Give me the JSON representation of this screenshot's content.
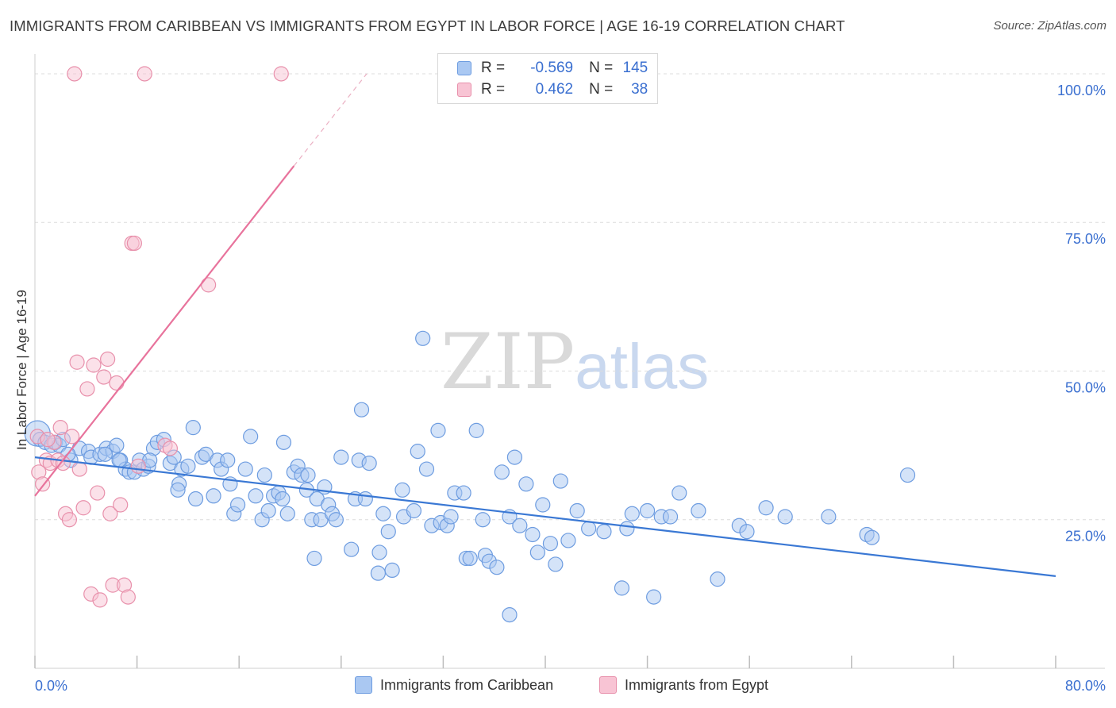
{
  "title": "IMMIGRANTS FROM CARIBBEAN VS IMMIGRANTS FROM EGYPT IN LABOR FORCE | AGE 16-19 CORRELATION CHART",
  "source": "Source: ZipAtlas.com",
  "watermark": {
    "zip": "ZIP",
    "atlas": "atlas"
  },
  "legend": {
    "r_label": "R =",
    "n_label": "N =",
    "rows": [
      {
        "r": "-0.569",
        "n": "145",
        "fill": "#aac8f2",
        "stroke": "#6d9ce0"
      },
      {
        "r": "0.462",
        "n": "38",
        "fill": "#f8c4d4",
        "stroke": "#e890ab"
      }
    ]
  },
  "colors": {
    "blue": "#3a78d4",
    "pink": "#e8739c",
    "blue_fill": "#a9c7f1",
    "pink_fill": "#f7c3d3",
    "axis_text": "#3a6fd0"
  },
  "chart_data": {
    "type": "scatter",
    "title": "IMMIGRANTS FROM CARIBBEAN VS IMMIGRANTS FROM EGYPT IN LABOR FORCE | AGE 16-19 CORRELATION CHART",
    "xlabel": "",
    "ylabel": "In Labor Force | Age 16-19",
    "xlim": [
      0,
      80
    ],
    "ylim": [
      0,
      102
    ],
    "x_tick_labels": [
      "0.0%",
      "80.0%"
    ],
    "y_ticks": [
      25,
      50,
      75,
      100
    ],
    "y_tick_labels": [
      "25.0%",
      "50.0%",
      "75.0%",
      "100.0%"
    ],
    "grid": "horizontal dashed",
    "legend_placement": "bottom-center",
    "series": [
      {
        "name": "Immigrants from Caribbean",
        "color": "#3a78d4",
        "trend": {
          "x": [
            0,
            80
          ],
          "y": [
            35.5,
            15.5
          ]
        },
        "points": [
          [
            0.2,
            39.5
          ],
          [
            0.4,
            38.5
          ],
          [
            0.8,
            38.0
          ],
          [
            1.3,
            37.5
          ],
          [
            1.6,
            38.0
          ],
          [
            1.9,
            37.5
          ],
          [
            2.2,
            38.5
          ],
          [
            2.8,
            35.0
          ],
          [
            3.5,
            37.0
          ],
          [
            4.2,
            36.5
          ],
          [
            4.4,
            35.5
          ],
          [
            5.1,
            36.0
          ],
          [
            5.6,
            37.0
          ],
          [
            6.1,
            36.5
          ],
          [
            5.5,
            36.0
          ],
          [
            6.4,
            37.5
          ],
          [
            6.7,
            35.0
          ],
          [
            7.1,
            33.5
          ],
          [
            7.4,
            33.0
          ],
          [
            7.8,
            33.0
          ],
          [
            8.2,
            35.0
          ],
          [
            8.5,
            33.5
          ],
          [
            8.9,
            34.0
          ],
          [
            9.3,
            37.0
          ],
          [
            9.6,
            38.0
          ],
          [
            10.1,
            38.5
          ],
          [
            10.6,
            34.5
          ],
          [
            10.9,
            35.5
          ],
          [
            11.3,
            31.0
          ],
          [
            11.5,
            33.5
          ],
          [
            12.0,
            34.0
          ],
          [
            12.4,
            40.5
          ],
          [
            12.6,
            28.5
          ],
          [
            13.1,
            35.5
          ],
          [
            13.4,
            36.0
          ],
          [
            14.0,
            29.0
          ],
          [
            14.3,
            35.0
          ],
          [
            14.6,
            33.5
          ],
          [
            15.1,
            35.0
          ],
          [
            15.3,
            31.0
          ],
          [
            15.6,
            26.0
          ],
          [
            15.9,
            27.5
          ],
          [
            16.5,
            33.5
          ],
          [
            16.9,
            39.0
          ],
          [
            17.3,
            29.0
          ],
          [
            17.8,
            25.0
          ],
          [
            18.0,
            32.5
          ],
          [
            18.3,
            26.5
          ],
          [
            18.7,
            29.0
          ],
          [
            19.1,
            29.5
          ],
          [
            19.4,
            28.5
          ],
          [
            19.5,
            38.0
          ],
          [
            19.8,
            26.0
          ],
          [
            20.3,
            33.0
          ],
          [
            20.6,
            34.0
          ],
          [
            20.9,
            32.5
          ],
          [
            21.3,
            30.0
          ],
          [
            21.7,
            25.0
          ],
          [
            21.9,
            18.5
          ],
          [
            22.1,
            28.5
          ],
          [
            22.4,
            25.0
          ],
          [
            22.7,
            30.5
          ],
          [
            23.0,
            27.5
          ],
          [
            23.3,
            26.0
          ],
          [
            23.6,
            25.0
          ],
          [
            24.0,
            35.5
          ],
          [
            24.8,
            20.0
          ],
          [
            25.1,
            28.5
          ],
          [
            25.4,
            35.0
          ],
          [
            25.6,
            43.5
          ],
          [
            25.9,
            28.5
          ],
          [
            26.2,
            34.5
          ],
          [
            26.9,
            16.0
          ],
          [
            27.0,
            19.5
          ],
          [
            27.3,
            26.0
          ],
          [
            27.7,
            23.0
          ],
          [
            28.0,
            16.5
          ],
          [
            28.8,
            30.0
          ],
          [
            28.9,
            25.5
          ],
          [
            29.7,
            26.5
          ],
          [
            30.0,
            36.5
          ],
          [
            30.4,
            55.5
          ],
          [
            30.7,
            33.5
          ],
          [
            31.1,
            24.0
          ],
          [
            31.6,
            40.0
          ],
          [
            31.8,
            24.5
          ],
          [
            32.3,
            24.0
          ],
          [
            32.6,
            25.5
          ],
          [
            32.9,
            29.5
          ],
          [
            33.6,
            29.5
          ],
          [
            33.8,
            18.5
          ],
          [
            34.1,
            18.5
          ],
          [
            34.6,
            40.0
          ],
          [
            35.1,
            25.0
          ],
          [
            35.3,
            19.0
          ],
          [
            35.6,
            18.0
          ],
          [
            36.2,
            17.0
          ],
          [
            36.6,
            33.0
          ],
          [
            37.2,
            25.5
          ],
          [
            37.6,
            35.5
          ],
          [
            38.0,
            24.0
          ],
          [
            38.5,
            31.0
          ],
          [
            39.0,
            22.5
          ],
          [
            39.4,
            19.5
          ],
          [
            39.8,
            27.5
          ],
          [
            40.4,
            21.0
          ],
          [
            40.8,
            17.5
          ],
          [
            41.2,
            31.5
          ],
          [
            41.8,
            21.5
          ],
          [
            42.5,
            26.5
          ],
          [
            43.4,
            23.5
          ],
          [
            44.6,
            23.0
          ],
          [
            46.0,
            13.5
          ],
          [
            46.4,
            23.5
          ],
          [
            46.8,
            26.0
          ],
          [
            48.0,
            26.5
          ],
          [
            48.5,
            12.0
          ],
          [
            49.1,
            25.5
          ],
          [
            49.8,
            25.5
          ],
          [
            50.5,
            29.5
          ],
          [
            52.0,
            26.5
          ],
          [
            53.5,
            15.0
          ],
          [
            55.2,
            24.0
          ],
          [
            55.8,
            23.0
          ],
          [
            57.3,
            27.0
          ],
          [
            58.8,
            25.5
          ],
          [
            62.2,
            25.5
          ],
          [
            37.2,
            9.0
          ],
          [
            65.2,
            22.5
          ],
          [
            65.6,
            22.0
          ],
          [
            68.4,
            32.5
          ],
          [
            11.2,
            30.0
          ],
          [
            21.4,
            32.5
          ],
          [
            6.6,
            35.0
          ],
          [
            2.6,
            36.0
          ],
          [
            9.0,
            35.0
          ]
        ]
      },
      {
        "name": "Immigrants from Egypt",
        "color": "#e8739c",
        "trend": {
          "x": [
            0,
            20.3
          ],
          "y": [
            29.0,
            84.5
          ]
        },
        "trend_dashed": {
          "x": [
            20.3,
            26.0
          ],
          "y": [
            84.5,
            100.0
          ]
        },
        "points": [
          [
            0.2,
            39.0
          ],
          [
            0.3,
            33.0
          ],
          [
            0.6,
            31.0
          ],
          [
            0.9,
            35.0
          ],
          [
            1.2,
            34.5
          ],
          [
            1.5,
            38.0
          ],
          [
            1.8,
            35.0
          ],
          [
            2.0,
            40.5
          ],
          [
            2.2,
            34.5
          ],
          [
            2.4,
            26.0
          ],
          [
            2.7,
            25.0
          ],
          [
            2.9,
            39.0
          ],
          [
            3.1,
            100.0
          ],
          [
            3.3,
            51.5
          ],
          [
            3.5,
            33.5
          ],
          [
            3.8,
            27.0
          ],
          [
            4.1,
            47.0
          ],
          [
            4.4,
            12.5
          ],
          [
            4.6,
            51.0
          ],
          [
            4.9,
            29.5
          ],
          [
            5.1,
            11.5
          ],
          [
            5.4,
            49.0
          ],
          [
            5.7,
            52.0
          ],
          [
            5.9,
            26.0
          ],
          [
            6.1,
            14.0
          ],
          [
            6.4,
            48.0
          ],
          [
            6.7,
            27.5
          ],
          [
            7.0,
            14.0
          ],
          [
            7.3,
            12.0
          ],
          [
            7.6,
            71.5
          ],
          [
            7.8,
            71.5
          ],
          [
            8.1,
            34.0
          ],
          [
            8.6,
            100.0
          ],
          [
            10.2,
            37.5
          ],
          [
            10.6,
            37.0
          ],
          [
            13.6,
            64.5
          ],
          [
            19.3,
            100.0
          ],
          [
            1.0,
            38.5
          ]
        ]
      }
    ]
  }
}
